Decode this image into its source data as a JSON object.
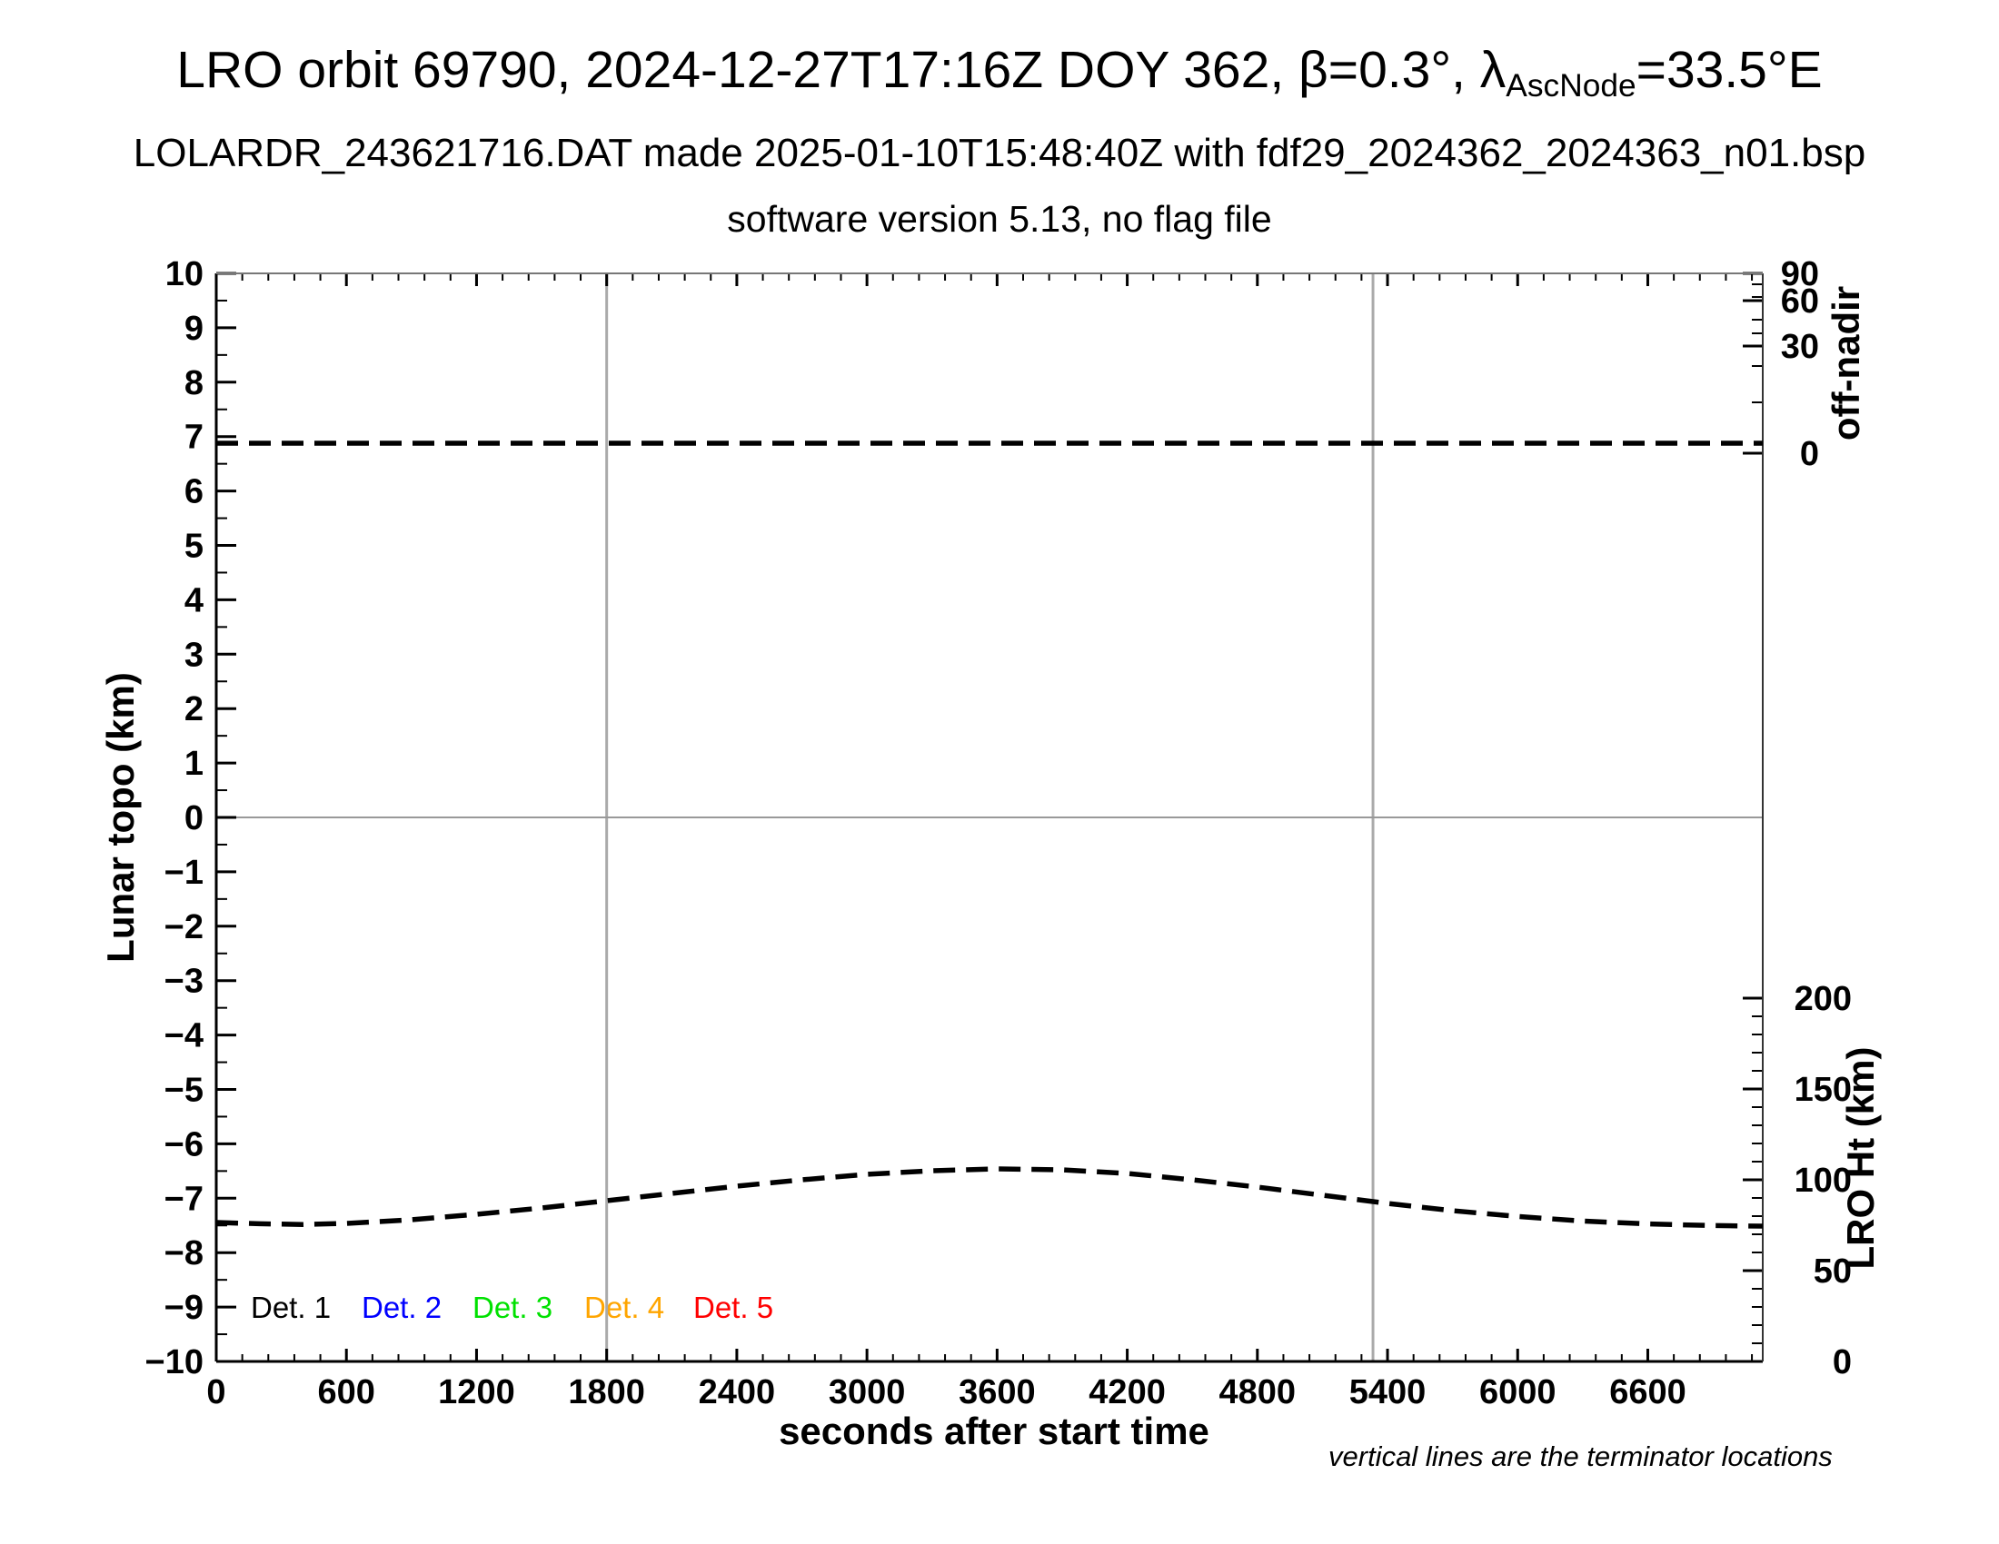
{
  "header": {
    "title_prefix": "LRO orbit 69790, 2024-12-27T17:16Z DOY 362, β=0.3°, λ",
    "title_subscript": "AscNode",
    "title_suffix": "=33.5°E",
    "subtitle1": "LOLARDR_243621716.DAT made 2025-01-10T15:48:40Z with fdf29_2024362_2024363_n01.bsp",
    "subtitle2": "software version 5.13, no flag file"
  },
  "footnote": "vertical lines are the terminator locations",
  "chart_data": {
    "type": "line",
    "xlabel": "seconds after start time",
    "x_range": [
      0,
      7130
    ],
    "x_major_ticks": [
      0,
      600,
      1200,
      1800,
      2400,
      3000,
      3600,
      4200,
      4800,
      5400,
      6000,
      6600
    ],
    "x_minor_tick_interval": 120,
    "left_axis": {
      "label": "Lunar topo (km)",
      "range": [
        -10,
        10
      ],
      "major_tick_interval": 1,
      "minor_tick_interval": 0.5,
      "zero_gridline": true
    },
    "right_axis_upper": {
      "label": "off-nadir",
      "units": "degrees",
      "scale": "nonlinear",
      "tick_labels": [
        90,
        60,
        30,
        0
      ]
    },
    "right_axis_lower": {
      "label": "LRO Ht (km)",
      "range": [
        0,
        200
      ],
      "tick_labels": [
        200,
        150,
        100,
        50,
        0
      ],
      "minor_tick_interval": 10
    },
    "terminator_lines_s": [
      1800,
      5333
    ],
    "series": [
      {
        "name": "off-nadir angle",
        "axis": "right_upper",
        "color": "#000000",
        "style": "dashed",
        "x": [
          0,
          7130
        ],
        "values": [
          2,
          2
        ]
      },
      {
        "name": "LRO height",
        "axis": "right_lower",
        "color": "#000000",
        "style": "dashed",
        "x": [
          0,
          200,
          400,
          600,
          900,
          1200,
          1500,
          1800,
          2100,
          2400,
          2700,
          3000,
          3300,
          3600,
          3900,
          4200,
          4500,
          4800,
          5100,
          5400,
          5700,
          6000,
          6300,
          6600,
          6900,
          7130
        ],
        "values": [
          76.5,
          75.8,
          75.4,
          76.0,
          78.0,
          81.0,
          84.5,
          88.5,
          92.5,
          96.5,
          100.0,
          103.0,
          105.0,
          106.0,
          105.5,
          103.5,
          100.0,
          96.0,
          91.5,
          87.0,
          83.0,
          79.8,
          77.3,
          75.7,
          74.8,
          74.5
        ]
      }
    ],
    "legend": [
      {
        "label": "Det. 1",
        "color": "#000000"
      },
      {
        "label": "Det. 2",
        "color": "#0000ff"
      },
      {
        "label": "Det. 3",
        "color": "#00e100"
      },
      {
        "label": "Det. 4",
        "color": "#ffa500"
      },
      {
        "label": "Det. 5",
        "color": "#ff0000"
      }
    ],
    "grid": "off",
    "legend_position": "bottom-left-inside"
  }
}
